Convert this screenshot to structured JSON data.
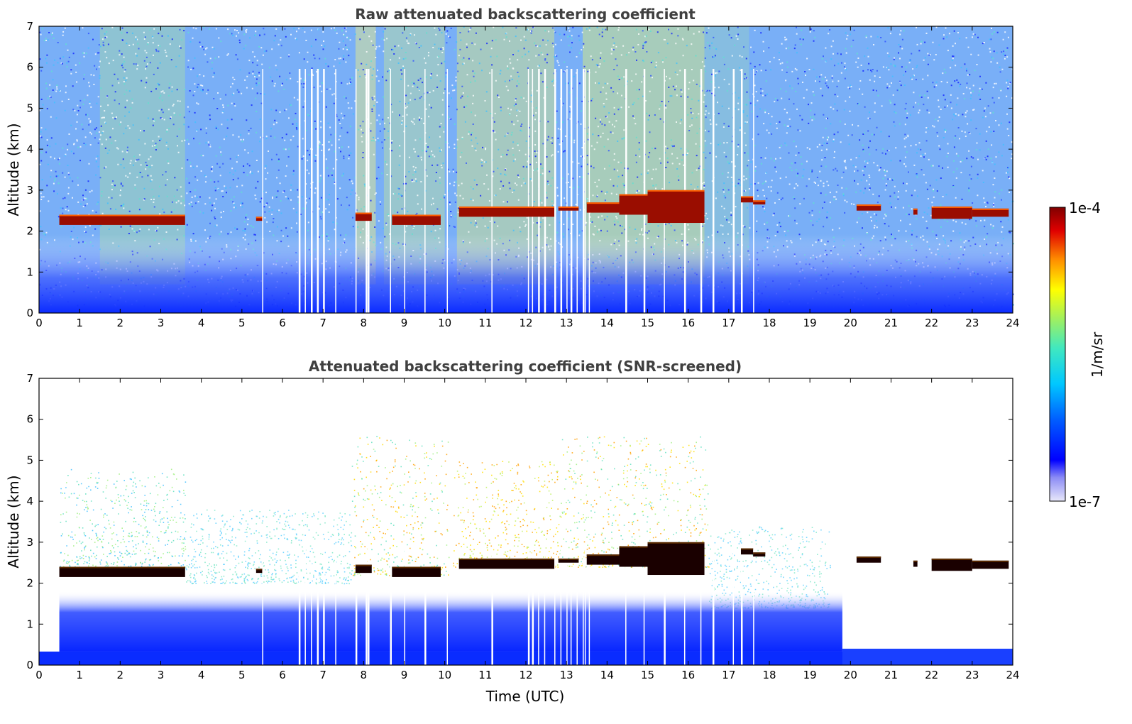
{
  "chart_data": [
    {
      "type": "heatmap",
      "title": "Raw attenuated backscattering coefficient",
      "xlabel": "",
      "ylabel": "Altitude (km)",
      "xlim": [
        0,
        24
      ],
      "ylim": [
        0,
        7
      ],
      "xticks": [
        0,
        1,
        2,
        3,
        4,
        5,
        6,
        7,
        8,
        9,
        10,
        11,
        12,
        13,
        14,
        15,
        16,
        17,
        18,
        19,
        20,
        21,
        22,
        23,
        24
      ],
      "yticks": [
        0,
        1,
        2,
        3,
        4,
        5,
        6,
        7
      ],
      "cloud_layer": [
        {
          "start": 0.5,
          "end": 3.6,
          "base": 2.15,
          "top": 2.4
        },
        {
          "start": 5.35,
          "end": 5.5,
          "base": 2.25,
          "top": 2.35
        },
        {
          "start": 7.8,
          "end": 8.2,
          "base": 2.25,
          "top": 2.45
        },
        {
          "start": 8.7,
          "end": 9.9,
          "base": 2.15,
          "top": 2.4
        },
        {
          "start": 10.35,
          "end": 12.7,
          "base": 2.35,
          "top": 2.6
        },
        {
          "start": 12.8,
          "end": 13.3,
          "base": 2.5,
          "top": 2.6
        },
        {
          "start": 13.5,
          "end": 14.3,
          "base": 2.45,
          "top": 2.7
        },
        {
          "start": 14.3,
          "end": 15.0,
          "base": 2.4,
          "top": 2.9
        },
        {
          "start": 15.0,
          "end": 16.4,
          "base": 2.2,
          "top": 3.0
        },
        {
          "start": 17.3,
          "end": 17.6,
          "base": 2.7,
          "top": 2.85
        },
        {
          "start": 17.6,
          "end": 17.9,
          "base": 2.65,
          "top": 2.75
        },
        {
          "start": 20.15,
          "end": 20.75,
          "base": 2.5,
          "top": 2.65
        },
        {
          "start": 21.55,
          "end": 21.65,
          "base": 2.4,
          "top": 2.55
        },
        {
          "start": 22.0,
          "end": 23.0,
          "base": 2.3,
          "top": 2.6
        },
        {
          "start": 23.0,
          "end": 23.9,
          "base": 2.35,
          "top": 2.55
        }
      ]
    },
    {
      "type": "heatmap",
      "title": "Attenuated backscattering coefficient (SNR-screened)",
      "xlabel": "Time (UTC)",
      "ylabel": "Altitude (km)",
      "xlim": [
        0,
        24
      ],
      "ylim": [
        0,
        7
      ],
      "xticks": [
        0,
        1,
        2,
        3,
        4,
        5,
        6,
        7,
        8,
        9,
        10,
        11,
        12,
        13,
        14,
        15,
        16,
        17,
        18,
        19,
        20,
        21,
        22,
        23,
        24
      ],
      "yticks": [
        0,
        1,
        2,
        3,
        4,
        5,
        6,
        7
      ]
    }
  ],
  "colorbar": {
    "label": "1/m/sr",
    "max_label": "1e-4",
    "min_label": "1e-7",
    "scale": "log",
    "range": [
      1e-07,
      0.0001
    ],
    "colors": [
      "#e6e6fa",
      "#0000ff",
      "#00c8ff",
      "#7cfc7c",
      "#ffff00",
      "#ff7f00",
      "#cc0000",
      "#800000"
    ]
  }
}
